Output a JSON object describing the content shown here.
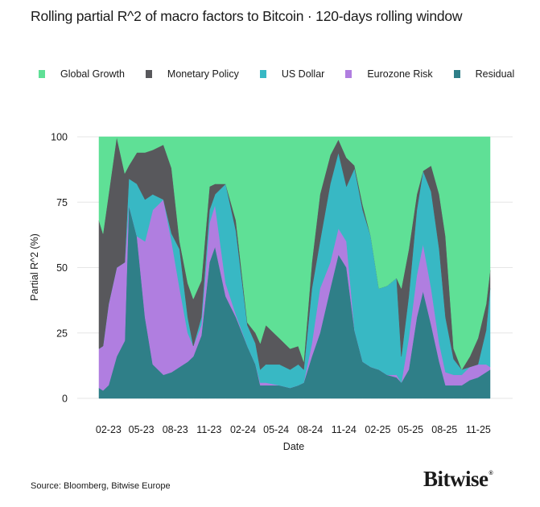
{
  "title": "Rolling partial R^2 of macro factors to Bitcoin · 120-days rolling window",
  "source": "Source: Bloomberg, Bitwise Europe",
  "logo": "Bitwise",
  "chart_data": {
    "type": "area",
    "stacked": true,
    "xlabel": "Date",
    "ylabel": "Partial R^2 (%)",
    "ylim": [
      0,
      100
    ],
    "yticks": [
      0,
      25,
      50,
      75,
      100
    ],
    "xticks": [
      {
        "date": "2023-02-01",
        "label": "02-23"
      },
      {
        "date": "2023-05-01",
        "label": "05-23"
      },
      {
        "date": "2023-08-01",
        "label": "08-23"
      },
      {
        "date": "2023-11-01",
        "label": "11-23"
      },
      {
        "date": "2024-02-01",
        "label": "02-24"
      },
      {
        "date": "2024-05-01",
        "label": "05-24"
      },
      {
        "date": "2024-08-01",
        "label": "08-24"
      },
      {
        "date": "2024-11-01",
        "label": "11-24"
      },
      {
        "date": "2025-02-01",
        "label": "02-25"
      },
      {
        "date": "2025-05-01",
        "label": "05-25"
      },
      {
        "date": "2025-08-01",
        "label": "08-25"
      },
      {
        "date": "2025-11-01",
        "label": "11-25"
      }
    ],
    "grid": true,
    "legend_position": "top",
    "x": [
      "2023-01-06",
      "2023-01-17",
      "2023-02-01",
      "2023-02-23",
      "2023-03-17",
      "2023-03-28",
      "2023-04-19",
      "2023-05-11",
      "2023-06-01",
      "2023-06-30",
      "2023-07-22",
      "2023-08-13",
      "2023-09-04",
      "2023-09-19",
      "2023-10-11",
      "2023-11-02",
      "2023-11-17",
      "2023-12-16",
      "2024-01-13",
      "2024-02-13",
      "2024-03-06",
      "2024-03-19",
      "2024-04-03",
      "2024-05-10",
      "2024-06-08",
      "2024-06-30",
      "2024-07-15",
      "2024-08-06",
      "2024-08-28",
      "2024-09-25",
      "2024-10-17",
      "2024-11-08",
      "2024-11-30",
      "2024-12-22",
      "2025-01-13",
      "2025-02-04",
      "2025-02-26",
      "2025-03-24",
      "2025-04-06",
      "2025-04-26",
      "2025-05-18",
      "2025-06-04",
      "2025-06-26",
      "2025-07-18",
      "2025-08-04",
      "2025-08-26",
      "2025-09-17",
      "2025-10-09",
      "2025-10-31",
      "2025-11-22",
      "2025-12-03"
    ],
    "series": [
      {
        "name": "Residual",
        "color": "#2f7f88",
        "values": [
          4,
          3,
          5,
          16,
          22,
          74,
          62,
          31,
          13,
          9,
          10,
          12,
          14,
          16,
          24,
          52,
          58,
          39,
          31,
          20,
          13,
          5,
          5,
          5,
          4,
          5,
          6,
          16,
          25,
          42,
          55,
          50,
          26,
          14,
          12,
          11,
          9,
          8,
          6,
          11,
          31,
          41,
          28,
          14,
          5,
          5,
          5,
          7,
          8,
          10,
          11
        ]
      },
      {
        "name": "Eurozone Risk",
        "color": "#b07ee0",
        "values": [
          15,
          17,
          31,
          34,
          30,
          0,
          0,
          29,
          59,
          67,
          50,
          30,
          11,
          4,
          4,
          15,
          16,
          5,
          1,
          0,
          0,
          1,
          1,
          0,
          0,
          0,
          0,
          5,
          17,
          10,
          10,
          10,
          0,
          0,
          0,
          0,
          0,
          1,
          0,
          12,
          16,
          18,
          14,
          7,
          5,
          4,
          4,
          5,
          5,
          3,
          1
        ]
      },
      {
        "name": "US Dollar",
        "color": "#38b8c4",
        "values": [
          0,
          0,
          0,
          0,
          0,
          10,
          20,
          16,
          6,
          0,
          3,
          15,
          6,
          0,
          3,
          5,
          4,
          38,
          32,
          8,
          8,
          5,
          7,
          8,
          7,
          8,
          5,
          21,
          18,
          30,
          29,
          21,
          62,
          58,
          50,
          31,
          34,
          37,
          10,
          16,
          25,
          28,
          37,
          36,
          21,
          6,
          2,
          0,
          0,
          13,
          30
        ]
      },
      {
        "name": "Monetary Policy",
        "color": "#58585c",
        "values": [
          49,
          43,
          42,
          50,
          34,
          5,
          12,
          18,
          17,
          21,
          25,
          3,
          13,
          18,
          14,
          9,
          4,
          0,
          4,
          1,
          4,
          10,
          15,
          10,
          8,
          7,
          3,
          10,
          18,
          11,
          5,
          11,
          1,
          2,
          0,
          0,
          0,
          0,
          26,
          18,
          6,
          0,
          10,
          21,
          31,
          4,
          0,
          4,
          10,
          10,
          7
        ]
      },
      {
        "name": "Global Growth",
        "color": "#5fe096",
        "values": [
          32,
          37,
          22,
          0,
          14,
          11,
          6,
          6,
          5,
          3,
          12,
          40,
          56,
          62,
          55,
          19,
          18,
          18,
          32,
          71,
          75,
          79,
          72,
          77,
          81,
          80,
          86,
          48,
          22,
          7,
          1,
          8,
          11,
          26,
          38,
          58,
          57,
          54,
          58,
          43,
          22,
          13,
          11,
          22,
          38,
          81,
          89,
          84,
          77,
          64,
          51
        ]
      }
    ]
  }
}
